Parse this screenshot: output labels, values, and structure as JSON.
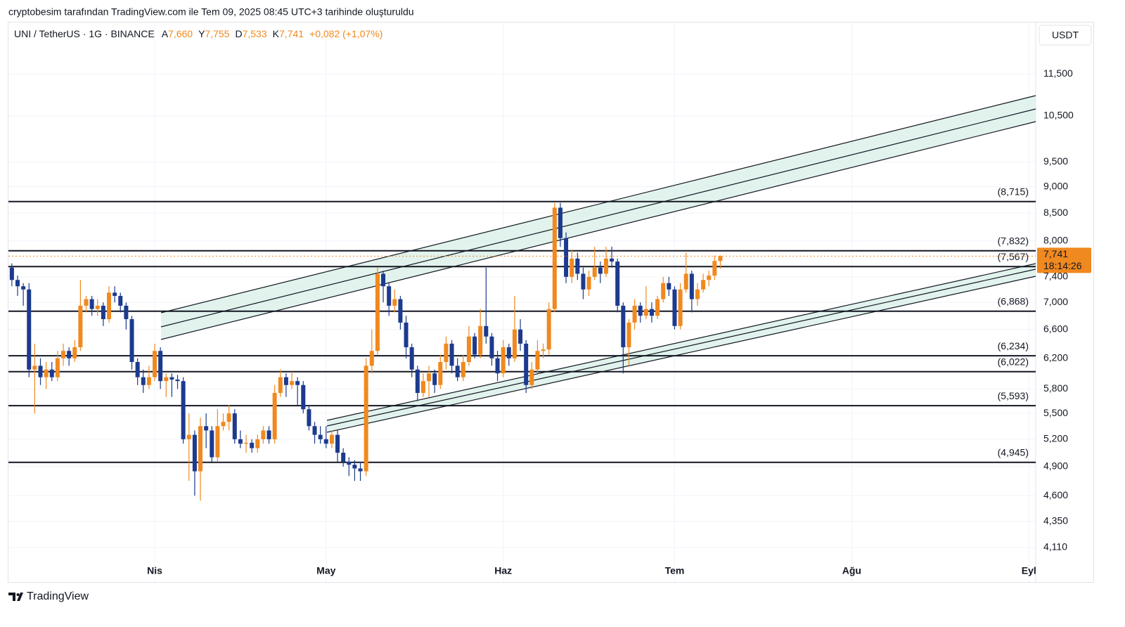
{
  "caption": "cryptobesim tarafından TradingView.com ile Tem 09, 2025 08:45 UTC+3 tarihinde oluşturuldu",
  "brand": "TradingView",
  "chart_data": {
    "type": "candlestick",
    "symbol": "UNI / TetherUS · 1G · BINANCE",
    "header_ohlc": [
      {
        "key": "A",
        "label": "7,660"
      },
      {
        "key": "Y",
        "label": "7,755"
      },
      {
        "key": "D",
        "label": "7,533"
      },
      {
        "key": "K",
        "label": "7,741"
      }
    ],
    "change": "+0,082 (+1,07%)",
    "currency": "USDT",
    "log_scale": true,
    "grid": true,
    "up_color": "#f0891f",
    "down_color": "#1c3a8e",
    "ylim": [
      3.813,
      12.86
    ],
    "yticks": [
      {
        "value": 4.11,
        "label": "4,110"
      },
      {
        "value": 4.35,
        "label": "4,350"
      },
      {
        "value": 4.6,
        "label": "4,600"
      },
      {
        "value": 4.9,
        "label": "4,900"
      },
      {
        "value": 5.2,
        "label": "5,200"
      },
      {
        "value": 5.5,
        "label": "5,500"
      },
      {
        "value": 5.8,
        "label": "5,800"
      },
      {
        "value": 6.2,
        "label": "6,200"
      },
      {
        "value": 6.6,
        "label": "6,600"
      },
      {
        "value": 7,
        "label": "7,000"
      },
      {
        "value": 7.4,
        "label": "7,400"
      },
      {
        "value": 8,
        "label": "8,000"
      },
      {
        "value": 8.5,
        "label": "8,500"
      },
      {
        "value": 9,
        "label": "9,000"
      },
      {
        "value": 9.5,
        "label": "9,500"
      },
      {
        "value": 10.5,
        "label": "10,500"
      },
      {
        "value": 11.5,
        "label": "11,500"
      }
    ],
    "xlim": [
      -0.6,
      179.2
    ],
    "xticks": [
      {
        "value": 25,
        "label": "Nis"
      },
      {
        "value": 55,
        "label": "May"
      },
      {
        "value": 86,
        "label": "Haz"
      },
      {
        "value": 116,
        "label": "Tem"
      },
      {
        "value": 147,
        "label": "Ağu"
      },
      {
        "value": 178,
        "label": "Eyl"
      }
    ],
    "levels": [
      {
        "value": 8.715,
        "label": "(8,715)"
      },
      {
        "value": 7.832,
        "label": "(7,832)"
      },
      {
        "value": 7.567,
        "label": "(7,567)"
      },
      {
        "value": 6.868,
        "label": "(6,868)"
      },
      {
        "value": 6.234,
        "label": "(6,234)"
      },
      {
        "value": 6.022,
        "label": "(6,022)"
      },
      {
        "value": 5.593,
        "label": "(5,593)"
      },
      {
        "value": 4.945,
        "label": "(4,945)"
      }
    ],
    "last_price": {
      "value": 7.741,
      "label": "7,741"
    },
    "countdown": "18:14:26",
    "ohlc": [
      [
        7.55,
        7.62,
        7.25,
        7.35
      ],
      [
        7.35,
        7.42,
        7.1,
        7.25
      ],
      [
        7.25,
        7.3,
        6.95,
        7.2
      ],
      [
        7.2,
        7.3,
        5.95,
        6.05
      ],
      [
        6.05,
        6.4,
        5.5,
        6.1
      ],
      [
        6.1,
        6.2,
        5.85,
        5.95
      ],
      [
        5.95,
        6.15,
        5.8,
        6.05
      ],
      [
        6.05,
        6.15,
        5.9,
        5.95
      ],
      [
        5.95,
        6.3,
        5.9,
        6.2
      ],
      [
        6.2,
        6.4,
        6.1,
        6.3
      ],
      [
        6.3,
        6.35,
        6.1,
        6.2
      ],
      [
        6.2,
        6.45,
        6.15,
        6.35
      ],
      [
        6.35,
        7.35,
        6.3,
        6.95
      ],
      [
        6.95,
        7.1,
        6.85,
        7.05
      ],
      [
        7.05,
        7.1,
        6.8,
        6.9
      ],
      [
        6.9,
        7.05,
        6.8,
        6.95
      ],
      [
        6.95,
        7.0,
        6.65,
        6.75
      ],
      [
        6.75,
        7.25,
        6.7,
        7.15
      ],
      [
        7.15,
        7.25,
        7.0,
        7.1
      ],
      [
        7.1,
        7.15,
        6.85,
        6.95
      ],
      [
        6.95,
        7.0,
        6.6,
        6.75
      ],
      [
        6.75,
        6.8,
        6.05,
        6.15
      ],
      [
        6.15,
        6.2,
        5.85,
        5.95
      ],
      [
        5.95,
        6.05,
        5.75,
        5.85
      ],
      [
        5.85,
        6.1,
        5.8,
        5.95
      ],
      [
        5.95,
        6.4,
        5.9,
        6.3
      ],
      [
        6.3,
        6.35,
        5.8,
        5.9
      ],
      [
        5.9,
        6.0,
        5.7,
        5.95
      ],
      [
        5.95,
        6.0,
        5.7,
        5.92
      ],
      [
        5.92,
        5.98,
        5.8,
        5.9
      ],
      [
        5.9,
        5.95,
        5.15,
        5.2
      ],
      [
        5.2,
        5.5,
        4.75,
        5.25
      ],
      [
        5.25,
        5.3,
        4.6,
        4.85
      ],
      [
        4.85,
        5.45,
        4.55,
        5.35
      ],
      [
        5.35,
        5.5,
        5.1,
        5.3
      ],
      [
        5.3,
        5.35,
        4.95,
        5.0
      ],
      [
        5.0,
        5.55,
        4.95,
        5.35
      ],
      [
        5.35,
        5.5,
        5.3,
        5.4
      ],
      [
        5.4,
        5.6,
        5.3,
        5.5
      ],
      [
        5.5,
        5.55,
        5.15,
        5.2
      ],
      [
        5.2,
        5.3,
        5.1,
        5.15
      ],
      [
        5.15,
        5.25,
        5.05,
        5.16
      ],
      [
        5.16,
        5.2,
        5.05,
        5.1
      ],
      [
        5.1,
        5.25,
        5.05,
        5.2
      ],
      [
        5.2,
        5.35,
        5.15,
        5.3
      ],
      [
        5.3,
        5.35,
        5.15,
        5.2
      ],
      [
        5.2,
        5.85,
        5.15,
        5.75
      ],
      [
        5.75,
        6.05,
        5.7,
        5.95
      ],
      [
        5.95,
        6.0,
        5.7,
        5.85
      ],
      [
        5.85,
        6.02,
        5.8,
        5.9
      ],
      [
        5.9,
        5.95,
        5.6,
        5.85
      ],
      [
        5.85,
        5.9,
        5.5,
        5.55
      ],
      [
        5.55,
        5.6,
        5.3,
        5.35
      ],
      [
        5.35,
        5.4,
        5.15,
        5.25
      ],
      [
        5.25,
        5.35,
        5.15,
        5.2
      ],
      [
        5.2,
        5.35,
        5.1,
        5.15
      ],
      [
        5.15,
        5.3,
        5.1,
        5.25
      ],
      [
        5.25,
        5.3,
        4.95,
        5.05
      ],
      [
        5.05,
        5.1,
        4.9,
        4.95
      ],
      [
        4.95,
        5.0,
        4.8,
        4.92
      ],
      [
        4.92,
        4.97,
        4.75,
        4.88
      ],
      [
        4.88,
        4.95,
        4.75,
        4.85
      ],
      [
        4.85,
        6.2,
        4.8,
        6.1
      ],
      [
        6.1,
        6.6,
        6.0,
        6.3
      ],
      [
        6.3,
        7.55,
        6.25,
        7.45
      ],
      [
        7.45,
        7.5,
        7.0,
        7.25
      ],
      [
        7.25,
        7.3,
        6.8,
        6.95
      ],
      [
        6.95,
        7.2,
        6.85,
        7.05
      ],
      [
        7.05,
        7.1,
        6.6,
        6.7
      ],
      [
        6.7,
        6.8,
        6.2,
        6.35
      ],
      [
        6.35,
        6.4,
        5.95,
        6.05
      ],
      [
        6.05,
        6.1,
        5.65,
        5.75
      ],
      [
        5.75,
        6.0,
        5.7,
        5.9
      ],
      [
        5.9,
        6.1,
        5.7,
        6.0
      ],
      [
        6.0,
        6.05,
        5.75,
        5.85
      ],
      [
        5.85,
        6.25,
        5.8,
        6.15
      ],
      [
        6.15,
        6.5,
        6.05,
        6.4
      ],
      [
        6.4,
        6.45,
        6.0,
        6.1
      ],
      [
        6.1,
        6.2,
        5.9,
        5.95
      ],
      [
        5.95,
        6.25,
        5.9,
        6.15
      ],
      [
        6.15,
        6.65,
        6.1,
        6.5
      ],
      [
        6.5,
        6.55,
        6.2,
        6.25
      ],
      [
        6.25,
        6.9,
        6.2,
        6.65
      ],
      [
        6.65,
        7.55,
        6.4,
        6.5
      ],
      [
        6.5,
        6.55,
        6.1,
        6.2
      ],
      [
        6.2,
        6.3,
        5.9,
        6.0
      ],
      [
        6.0,
        6.45,
        5.95,
        6.35
      ],
      [
        6.35,
        6.4,
        6.1,
        6.2
      ],
      [
        6.2,
        7.1,
        6.15,
        6.6
      ],
      [
        6.6,
        6.75,
        6.3,
        6.4
      ],
      [
        6.4,
        6.45,
        5.75,
        5.85
      ],
      [
        5.85,
        6.15,
        5.8,
        6.05
      ],
      [
        6.05,
        6.45,
        6.0,
        6.3
      ],
      [
        6.3,
        6.4,
        6.2,
        6.32
      ],
      [
        6.32,
        7.0,
        6.25,
        6.9
      ],
      [
        6.9,
        8.69,
        6.85,
        8.6
      ],
      [
        8.6,
        8.69,
        7.9,
        8.05
      ],
      [
        8.05,
        8.15,
        7.3,
        7.4
      ],
      [
        7.4,
        7.85,
        7.3,
        7.7
      ],
      [
        7.7,
        7.8,
        7.35,
        7.45
      ],
      [
        7.45,
        7.55,
        7.05,
        7.2
      ],
      [
        7.2,
        7.5,
        7.1,
        7.4
      ],
      [
        7.4,
        7.9,
        7.35,
        7.55
      ],
      [
        7.55,
        7.65,
        7.3,
        7.45
      ],
      [
        7.45,
        7.9,
        7.4,
        7.7
      ],
      [
        7.7,
        7.9,
        7.55,
        7.65
      ],
      [
        7.65,
        7.7,
        6.85,
        6.95
      ],
      [
        6.95,
        7.0,
        6.0,
        6.35
      ],
      [
        6.35,
        6.75,
        6.1,
        6.7
      ],
      [
        6.7,
        7.05,
        6.6,
        6.95
      ],
      [
        6.95,
        7.0,
        6.7,
        6.8
      ],
      [
        6.8,
        7.25,
        6.75,
        6.9
      ],
      [
        6.9,
        7.0,
        6.7,
        6.8
      ],
      [
        6.8,
        7.1,
        6.75,
        7.05
      ],
      [
        7.05,
        7.4,
        7.0,
        7.3
      ],
      [
        7.3,
        7.4,
        7.1,
        7.2
      ],
      [
        7.2,
        7.25,
        6.6,
        6.65
      ],
      [
        6.65,
        7.3,
        6.6,
        7.2
      ],
      [
        7.2,
        7.8,
        7.15,
        7.45
      ],
      [
        7.45,
        7.5,
        6.85,
        7.05
      ],
      [
        7.05,
        7.3,
        6.95,
        7.2
      ],
      [
        7.2,
        7.45,
        7.15,
        7.35
      ],
      [
        7.35,
        7.5,
        7.25,
        7.42
      ],
      [
        7.42,
        7.75,
        7.35,
        7.66
      ],
      [
        7.66,
        7.755,
        7.533,
        7.741
      ]
    ]
  }
}
